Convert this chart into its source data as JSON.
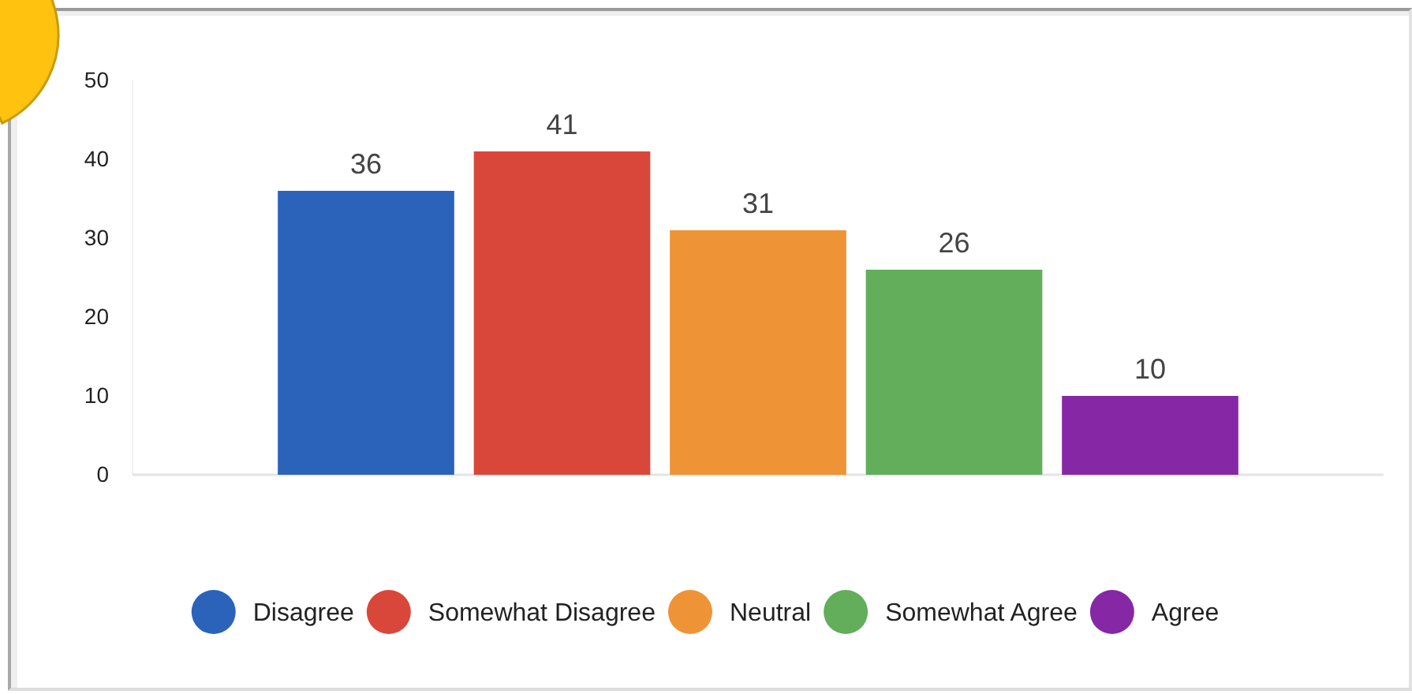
{
  "chart_data": {
    "type": "bar",
    "categories": [
      null
    ],
    "series": [
      {
        "name": "Disagree",
        "color": "#2b63bb",
        "values": [
          36
        ]
      },
      {
        "name": "Somewhat Disagree",
        "color": "#d9473a",
        "values": [
          41
        ]
      },
      {
        "name": "Neutral",
        "color": "#ef9337",
        "values": [
          31
        ]
      },
      {
        "name": "Somewhat Agree",
        "color": "#62ae5a",
        "values": [
          26
        ]
      },
      {
        "name": "Agree",
        "color": "#8628a5",
        "values": [
          10
        ]
      }
    ],
    "ylim": [
      0,
      50
    ],
    "yticks": [
      0,
      10,
      20,
      30,
      40,
      50
    ],
    "data_labels": true,
    "legend": "bottom",
    "grid": false
  }
}
